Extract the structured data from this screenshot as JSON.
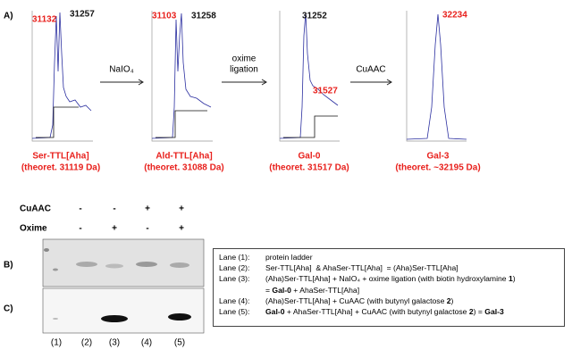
{
  "panel_labels": [
    "A)",
    "B)",
    "C)"
  ],
  "spectra": [
    {
      "peaks": [
        "31132",
        "31257"
      ],
      "name": "Ser-TTL[Aha]",
      "theoretical": "(theoret. 31119 Da)"
    },
    {
      "peaks": [
        "31103",
        "31258"
      ],
      "name": "Ald-TTL[Aha]",
      "theoretical": "(theoret. 31088 Da)"
    },
    {
      "peaks": [
        "31252",
        "31527"
      ],
      "name": "Gal-0",
      "theoretical": "(theoret. 31517 Da)"
    },
    {
      "peaks": [
        "32234"
      ],
      "name": "Gal-3",
      "theoretical": "(theoret. ~32195 Da)"
    }
  ],
  "arrows": [
    [
      "NaIO₄"
    ],
    [
      "oxime",
      "ligation"
    ],
    [
      "CuAAC"
    ]
  ],
  "gel": {
    "conditions": [
      {
        "label": "CuAAC",
        "signs": [
          "-",
          "-",
          "+",
          "+"
        ]
      },
      {
        "label": "Oxime",
        "signs": [
          "-",
          "+",
          "-",
          "+"
        ]
      }
    ],
    "lanes": [
      "(1)",
      "(2)",
      "(3)",
      "(4)",
      "(5)"
    ]
  },
  "legend": [
    {
      "lane": "Lane (1):",
      "lines": [
        [
          {
            "text": "protein ladder",
            "bold": false
          }
        ]
      ]
    },
    {
      "lane": "Lane (2):",
      "lines": [
        [
          {
            "text": "Ser-TTL[Aha]  & AhaSer-TTL[Aha]  = (Aha)Ser-TTL[Aha]",
            "bold": false
          }
        ]
      ]
    },
    {
      "lane": "Lane (3):",
      "lines": [
        [
          {
            "text": "(Aha)Ser-TTL[Aha] + NaIO₄ + oxime ligation (with biotin hydroxylamine ",
            "bold": false
          },
          {
            "text": "1",
            "bold": true
          },
          {
            "text": ")",
            "bold": false
          }
        ],
        [
          {
            "text": "= ",
            "bold": false
          },
          {
            "text": "Gal-0",
            "bold": true
          },
          {
            "text": " + AhaSer-TTL[Aha]",
            "bold": false
          }
        ]
      ]
    },
    {
      "lane": "Lane (4):",
      "lines": [
        [
          {
            "text": "(Aha)Ser-TTL[Aha] + CuAAC (with butynyl galactose ",
            "bold": false
          },
          {
            "text": "2",
            "bold": true
          },
          {
            "text": ")",
            "bold": false
          }
        ]
      ]
    },
    {
      "lane": "Lane (5):",
      "lines": [
        [
          {
            "text": "Gal-0",
            "bold": true
          },
          {
            "text": " + AhaSer-TTL[Aha] + CuAAC (with butynyl galactose ",
            "bold": false
          },
          {
            "text": "2",
            "bold": true
          },
          {
            "text": ") = ",
            "bold": false
          },
          {
            "text": "Gal-3",
            "bold": true
          }
        ]
      ]
    }
  ]
}
